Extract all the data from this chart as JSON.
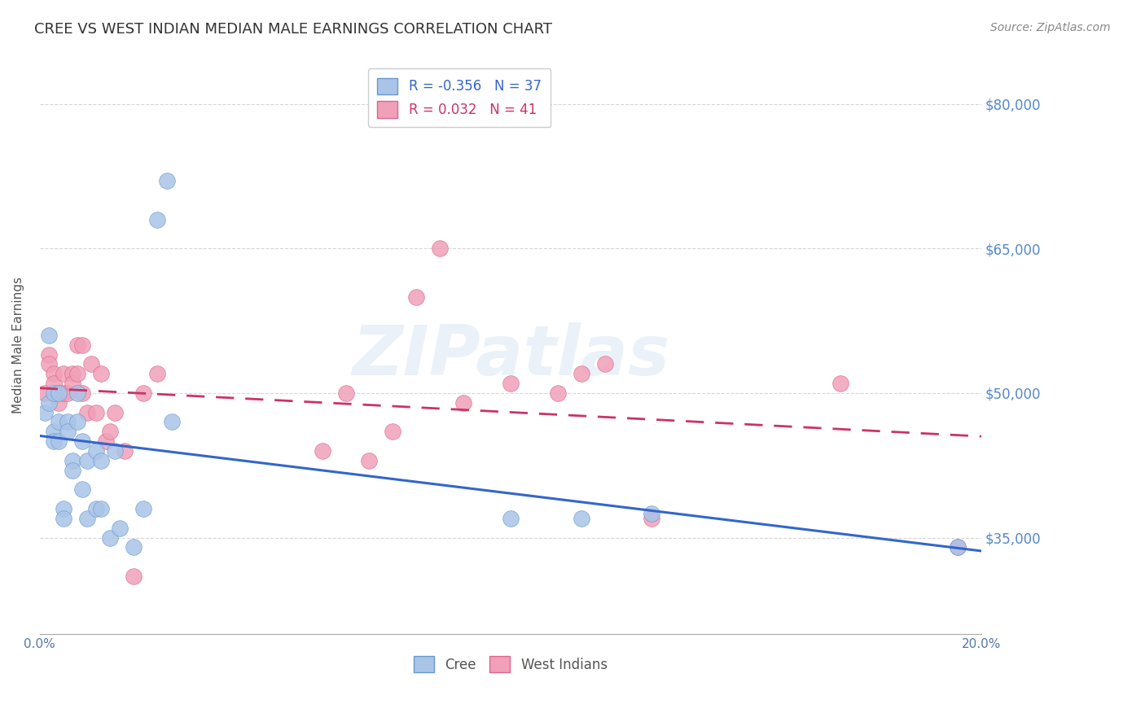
{
  "title": "CREE VS WEST INDIAN MEDIAN MALE EARNINGS CORRELATION CHART",
  "source": "Source: ZipAtlas.com",
  "ylabel": "Median Male Earnings",
  "xlim": [
    0.0,
    0.2
  ],
  "ylim": [
    25000,
    85000
  ],
  "yticks": [
    35000,
    50000,
    65000,
    80000
  ],
  "ytick_labels": [
    "$35,000",
    "$50,000",
    "$65,000",
    "$80,000"
  ],
  "xticks": [
    0.0,
    0.05,
    0.1,
    0.15,
    0.2
  ],
  "xtick_labels": [
    "0.0%",
    "",
    "",
    "",
    "20.0%"
  ],
  "watermark": "ZIPatlas",
  "bg_color": "#ffffff",
  "grid_color": "#cccccc",
  "cree_color": "#aac4e8",
  "west_indian_color": "#f0a0b8",
  "cree_line_color": "#3366cc",
  "west_indian_line_color": "#cc3366",
  "cree_R": -0.356,
  "cree_N": 37,
  "west_indian_R": 0.032,
  "west_indian_N": 41,
  "cree_x": [
    0.001,
    0.002,
    0.002,
    0.003,
    0.003,
    0.003,
    0.004,
    0.004,
    0.004,
    0.005,
    0.005,
    0.006,
    0.006,
    0.007,
    0.007,
    0.008,
    0.008,
    0.009,
    0.009,
    0.01,
    0.01,
    0.012,
    0.012,
    0.013,
    0.013,
    0.015,
    0.016,
    0.017,
    0.02,
    0.022,
    0.025,
    0.027,
    0.028,
    0.1,
    0.115,
    0.13,
    0.195
  ],
  "cree_y": [
    48000,
    56000,
    49000,
    50000,
    46000,
    45000,
    50000,
    47000,
    45000,
    38000,
    37000,
    47000,
    46000,
    43000,
    42000,
    47000,
    50000,
    45000,
    40000,
    43000,
    37000,
    44000,
    38000,
    43000,
    38000,
    35000,
    44000,
    36000,
    34000,
    38000,
    68000,
    72000,
    47000,
    37000,
    37000,
    37500,
    34000
  ],
  "west_indian_x": [
    0.001,
    0.002,
    0.002,
    0.003,
    0.003,
    0.004,
    0.004,
    0.005,
    0.005,
    0.006,
    0.007,
    0.007,
    0.008,
    0.008,
    0.009,
    0.009,
    0.01,
    0.011,
    0.012,
    0.013,
    0.014,
    0.015,
    0.016,
    0.018,
    0.02,
    0.022,
    0.025,
    0.06,
    0.065,
    0.07,
    0.075,
    0.08,
    0.085,
    0.09,
    0.1,
    0.11,
    0.115,
    0.12,
    0.13,
    0.17,
    0.195
  ],
  "west_indian_y": [
    50000,
    54000,
    53000,
    52000,
    51000,
    50000,
    49000,
    52000,
    50000,
    50000,
    52000,
    51000,
    55000,
    52000,
    55000,
    50000,
    48000,
    53000,
    48000,
    52000,
    45000,
    46000,
    48000,
    44000,
    31000,
    50000,
    52000,
    44000,
    50000,
    43000,
    46000,
    60000,
    65000,
    49000,
    51000,
    50000,
    52000,
    53000,
    37000,
    51000,
    34000
  ]
}
